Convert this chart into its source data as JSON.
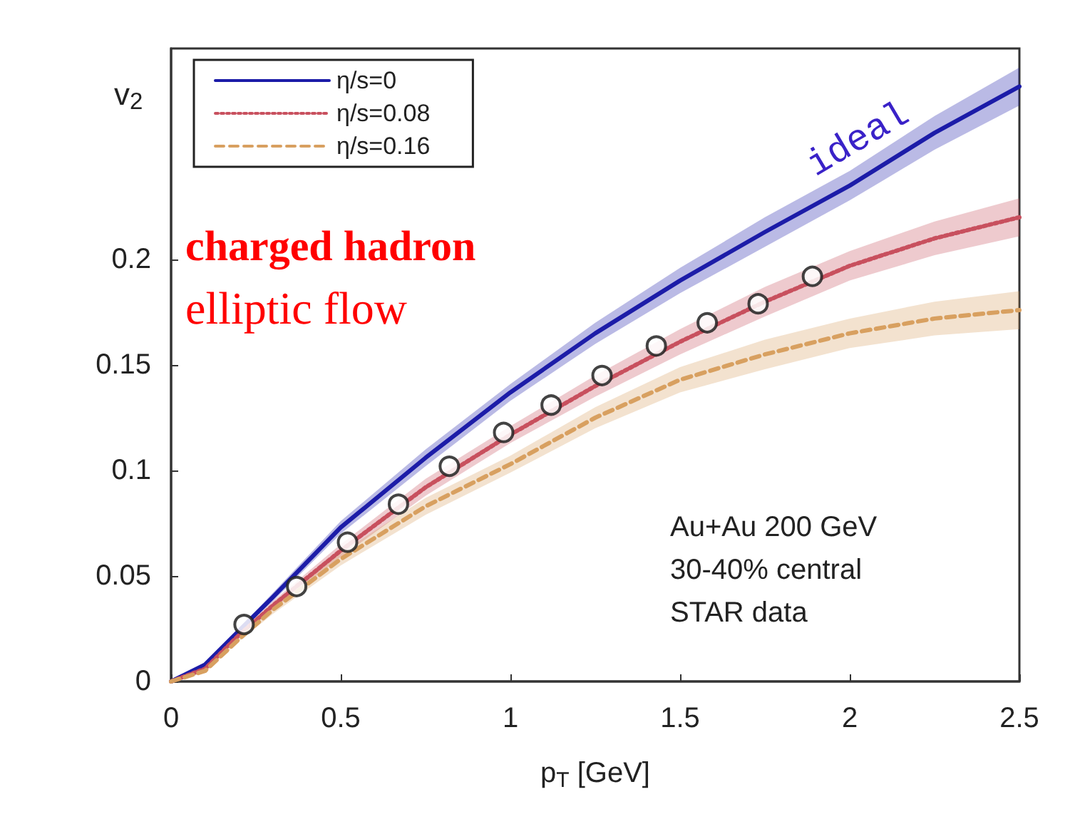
{
  "chart_data": {
    "type": "line",
    "xlabel": "p$_{T}$ [GeV]",
    "ylabel": "v$_{2}$",
    "xlim": [
      0,
      2.5
    ],
    "xticks": [
      0,
      0.5,
      1,
      1.5,
      2,
      2.5
    ],
    "ylim": [
      0,
      0.3
    ],
    "yticks": [
      0,
      0.05,
      0.1,
      0.15,
      0.2
    ],
    "x": [
      0,
      0.1,
      0.2,
      0.3,
      0.5,
      0.75,
      1,
      1.25,
      1.5,
      1.75,
      2,
      2.25,
      2.5
    ],
    "series": [
      {
        "name": "η/s=0",
        "color": "#1c1ca8",
        "line_style": "solid",
        "values": [
          0,
          0.008,
          0.024,
          0.04,
          0.073,
          0.106,
          0.137,
          0.165,
          0.19,
          0.213,
          0.235,
          0.26,
          0.282
        ],
        "lower": [
          0,
          0.007,
          0.023,
          0.038,
          0.07,
          0.102,
          0.133,
          0.16,
          0.184,
          0.206,
          0.228,
          0.252,
          0.273
        ],
        "upper": [
          0,
          0.009,
          0.025,
          0.042,
          0.076,
          0.11,
          0.141,
          0.17,
          0.196,
          0.22,
          0.242,
          0.268,
          0.291
        ]
      },
      {
        "name": "η/s=0.08",
        "color": "#c8505e",
        "line_style": "dotted",
        "values": [
          0,
          0.006,
          0.022,
          0.036,
          0.062,
          0.092,
          0.117,
          0.14,
          0.161,
          0.18,
          0.197,
          0.21,
          0.22
        ],
        "lower": [
          0,
          0.005,
          0.021,
          0.034,
          0.059,
          0.088,
          0.113,
          0.135,
          0.155,
          0.173,
          0.19,
          0.202,
          0.211
        ],
        "upper": [
          0,
          0.007,
          0.023,
          0.038,
          0.065,
          0.096,
          0.121,
          0.145,
          0.167,
          0.187,
          0.204,
          0.218,
          0.229
        ]
      },
      {
        "name": "η/s=0.16",
        "color": "#d8a060",
        "line_style": "dashed",
        "values": [
          0,
          0.005,
          0.02,
          0.034,
          0.058,
          0.083,
          0.103,
          0.125,
          0.143,
          0.155,
          0.165,
          0.172,
          0.176
        ],
        "lower": [
          0,
          0.004,
          0.019,
          0.032,
          0.055,
          0.079,
          0.099,
          0.12,
          0.137,
          0.148,
          0.158,
          0.164,
          0.167
        ],
        "upper": [
          0,
          0.006,
          0.021,
          0.036,
          0.061,
          0.087,
          0.107,
          0.13,
          0.149,
          0.162,
          0.172,
          0.18,
          0.185
        ]
      },
      {
        "type": "scatter",
        "color": "#222222",
        "marker": "circle",
        "x": [
          0.215,
          0.37,
          0.52,
          0.67,
          0.82,
          0.98,
          1.12,
          1.27,
          1.43,
          1.58,
          1.73,
          1.89
        ],
        "values": [
          0.027,
          0.045,
          0.066,
          0.084,
          0.102,
          0.118,
          0.131,
          0.145,
          0.159,
          0.17,
          0.179,
          0.192
        ]
      }
    ],
    "annotations": [
      "charged hadron",
      "elliptic flow",
      "ideal",
      "Au+Au 200 GeV\n30-40% central\nSTAR data"
    ],
    "legend": "top left",
    "grid": false
  }
}
